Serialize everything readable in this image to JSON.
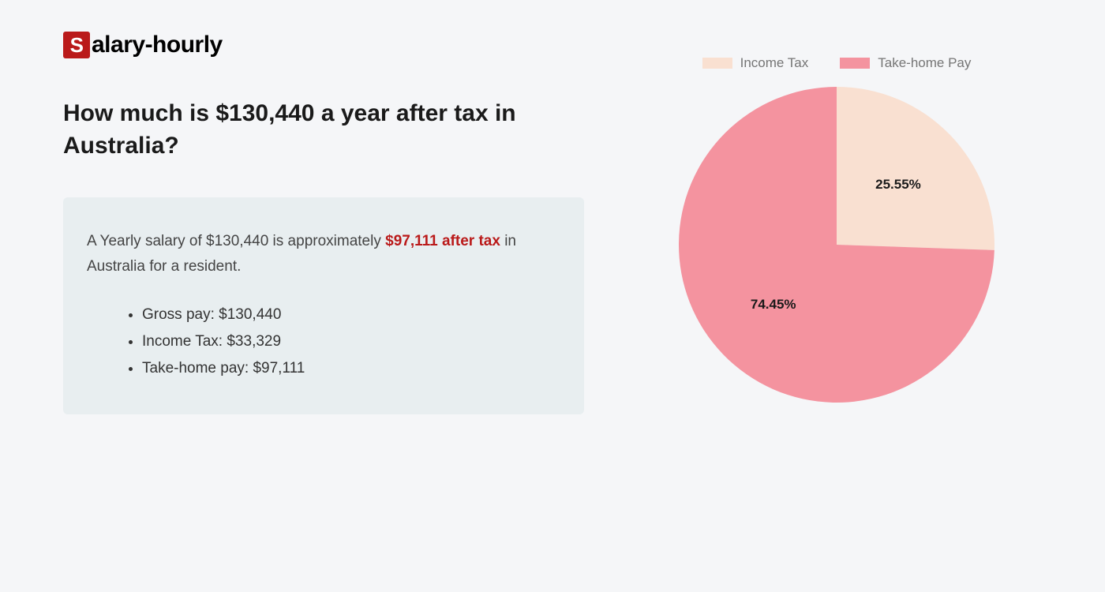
{
  "logo": {
    "initial": "S",
    "rest": "alary-hourly"
  },
  "headline": "How much is $130,440 a year after tax in Australia?",
  "summary": {
    "prefix": "A Yearly salary of $130,440 is approximately ",
    "highlight": "$97,111 after tax",
    "suffix": " in Australia for a resident."
  },
  "details": {
    "gross": "Gross pay: $130,440",
    "tax": "Income Tax: $33,329",
    "takehome": "Take-home pay: $97,111"
  },
  "chart": {
    "type": "pie",
    "radius": 200,
    "background_color": "#f5f6f8",
    "legend": {
      "income_tax": "Income Tax",
      "takehome": "Take-home Pay",
      "text_color": "#757575",
      "fontsize": 17
    },
    "slices": {
      "income_tax": {
        "value": 25.55,
        "label": "25.55%",
        "color": "#f9e0d1"
      },
      "takehome": {
        "value": 74.45,
        "label": "74.45%",
        "color": "#f4939f"
      }
    },
    "label_fontsize": 17,
    "label_color": "#1a1a1a",
    "label_fontweight": 700
  },
  "colors": {
    "page_bg": "#f5f6f8",
    "box_bg": "#e8eef0",
    "accent": "#ba1a1a",
    "text_primary": "#1a1a1a",
    "text_body": "#444"
  }
}
